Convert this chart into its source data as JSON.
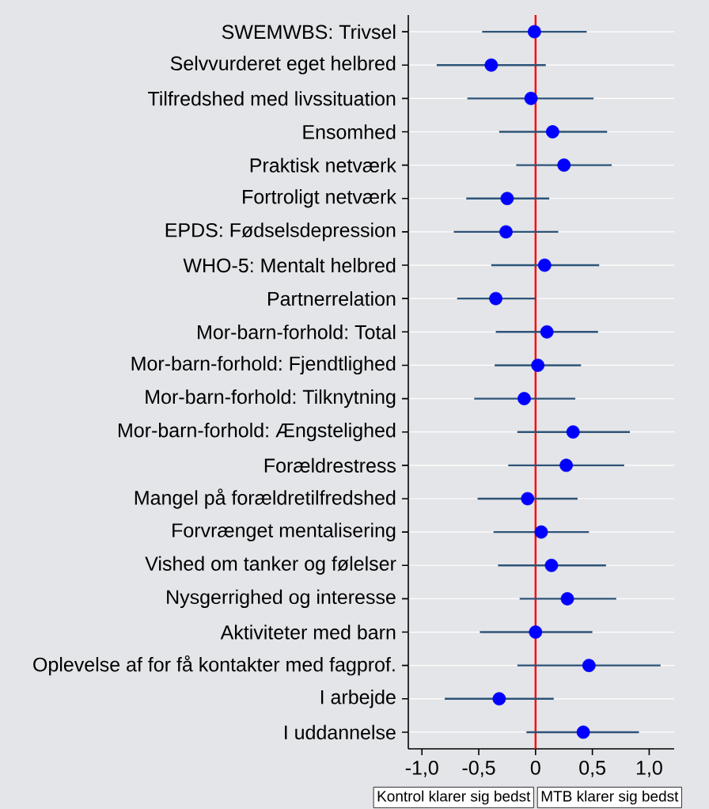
{
  "chart_data": {
    "type": "scatter",
    "orientation": "horizontal",
    "categories": [
      "SWEMWBS: Trivsel",
      "Selvvurderet eget helbred",
      "Tilfredshed med livssituation",
      "Ensomhed",
      "Praktisk netværk",
      "Fortroligt netværk",
      "EPDS: Fødselsdepression",
      "WHO-5: Mentalt helbred",
      "Partnerrelation",
      "Mor-barn-forhold: Total",
      "Mor-barn-forhold: Fjendtlighed",
      "Mor-barn-forhold: Tilknytning",
      "Mor-barn-forhold: Ængstelighed",
      "Forældrestress",
      "Mangel på forældretilfredshed",
      "Forvrænget mentalisering",
      "Vished om tanker og følelser",
      "Nysgerrighed og interesse",
      "Aktiviteter med barn",
      "Oplevelse af for få kontakter med fagprof.",
      "I arbejde",
      "I uddannelse"
    ],
    "series": [
      {
        "color": "#0000ff",
        "values": [
          -0.01,
          -0.39,
          -0.04,
          0.15,
          0.25,
          -0.25,
          -0.26,
          0.08,
          -0.35,
          0.1,
          0.02,
          -0.1,
          0.33,
          0.27,
          -0.07,
          0.05,
          0.14,
          0.28,
          0.0,
          0.47,
          -0.32,
          0.42
        ],
        "errors": [
          [
            -0.47,
            0.45
          ],
          [
            -0.87,
            0.09
          ],
          [
            -0.6,
            0.51
          ],
          [
            -0.32,
            0.63
          ],
          [
            -0.17,
            0.67
          ],
          [
            -0.61,
            0.12
          ],
          [
            -0.72,
            0.2
          ],
          [
            -0.39,
            0.56
          ],
          [
            -0.69,
            0.0
          ],
          [
            -0.35,
            0.55
          ],
          [
            -0.36,
            0.4
          ],
          [
            -0.54,
            0.35
          ],
          [
            -0.16,
            0.83
          ],
          [
            -0.24,
            0.78
          ],
          [
            -0.51,
            0.37
          ],
          [
            -0.37,
            0.47
          ],
          [
            -0.33,
            0.62
          ],
          [
            -0.14,
            0.71
          ],
          [
            -0.49,
            0.5
          ],
          [
            -0.16,
            1.1
          ],
          [
            -0.8,
            0.16
          ],
          [
            -0.08,
            0.91
          ]
        ]
      }
    ],
    "xlim": [
      -1.12,
      1.22
    ],
    "xticks": [
      {
        "value": -1,
        "label": "-1,0"
      },
      {
        "value": -0.5,
        "label": "-0,5"
      },
      0,
      {
        "value": 0.5,
        "label": "0,5"
      },
      {
        "value": 1,
        "label": "1,0"
      }
    ],
    "ref_lines": [
      {
        "axis": "x",
        "value": 0,
        "color": "#ff0000"
      }
    ],
    "grid": "y",
    "marker": "circle",
    "annotations": [
      "Kontrol klarer sig bedst",
      "MTB klarer sig bedst"
    ]
  }
}
